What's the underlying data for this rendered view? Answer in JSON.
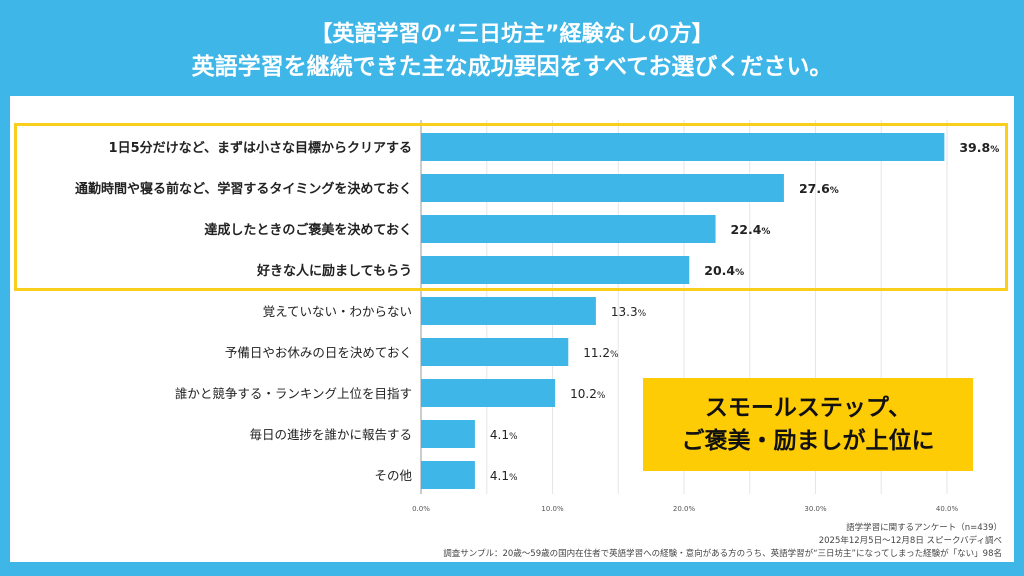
{
  "title_line1": "【英語学習の“三日坊主”経験なしの方】",
  "title_line2": "英語学習を継続できた主な成功要因をすべてお選びください。",
  "chart_data": {
    "type": "bar",
    "orientation": "horizontal",
    "categories": [
      "1日5分だけなど、まずは小さな目標からクリアする",
      "通勤時間や寝る前など、学習するタイミングを決めておく",
      "達成したときのご褒美を決めておく",
      "好きな人に励ましてもらう",
      "覚えていない・わからない",
      "予備日やお休みの日を決めておく",
      "誰かと競争する・ランキング上位を目指す",
      "毎日の進捗を誰かに報告する",
      "その他"
    ],
    "values": [
      39.8,
      27.6,
      22.4,
      20.4,
      13.3,
      11.2,
      10.2,
      4.1,
      4.1
    ],
    "value_labels": [
      "39.8",
      "27.6",
      "22.4",
      "20.4",
      "13.3",
      "11.2",
      "10.2",
      "4.1",
      "4.1"
    ],
    "unit": "%",
    "highlighted_count": 4,
    "xlim": [
      0,
      40
    ],
    "xticks": [
      "0.0%",
      "10.0%",
      "20.0%",
      "30.0%",
      "40.0%"
    ],
    "grid": true,
    "bar_color": "#3fb6e8",
    "highlight_color": "#f8cf1c"
  },
  "callout": {
    "line1": "スモールステップ、",
    "line2": "ご褒美・励ましが上位に"
  },
  "footer": {
    "line1": "語学学習に関するアンケート（n=439）",
    "line2": "2025年12月5日～12月8日 スピークバディ調べ",
    "line3": "調査サンプル：20歳～59歳の国内在住者で英語学習への経験・意向がある方のうち、英語学習が“三日坊主”になってしまった経験が「ない」98名"
  }
}
